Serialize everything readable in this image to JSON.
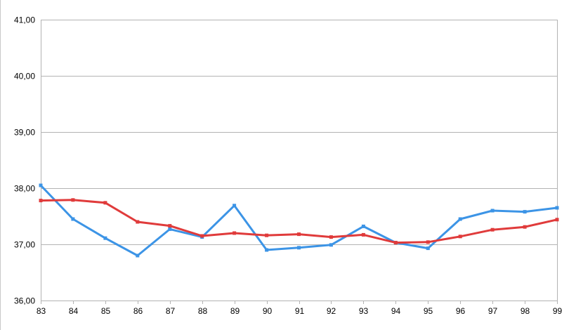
{
  "chart_data": {
    "type": "line",
    "title": "",
    "xlabel": "",
    "ylabel": "",
    "categories": [
      "83",
      "84",
      "85",
      "86",
      "87",
      "88",
      "89",
      "90",
      "91",
      "92",
      "93",
      "94",
      "95",
      "96",
      "97",
      "98",
      "99"
    ],
    "ylim": [
      36,
      41
    ],
    "yticks": [
      "36,00",
      "37,00",
      "38,00",
      "39,00",
      "40,00",
      "41,00"
    ],
    "grid": true,
    "legend": "none",
    "series": [
      {
        "color": "#3c94e6",
        "values": [
          38.05,
          37.45,
          37.11,
          36.8,
          37.27,
          37.13,
          37.69,
          36.9,
          36.94,
          36.99,
          37.32,
          37.03,
          36.93,
          37.45,
          37.6,
          37.58,
          37.65
        ]
      },
      {
        "color": "#e03b3b",
        "values": [
          37.78,
          37.79,
          37.74,
          37.4,
          37.33,
          37.15,
          37.2,
          37.16,
          37.18,
          37.13,
          37.17,
          37.03,
          37.04,
          37.14,
          37.26,
          37.31,
          37.44
        ]
      }
    ]
  }
}
